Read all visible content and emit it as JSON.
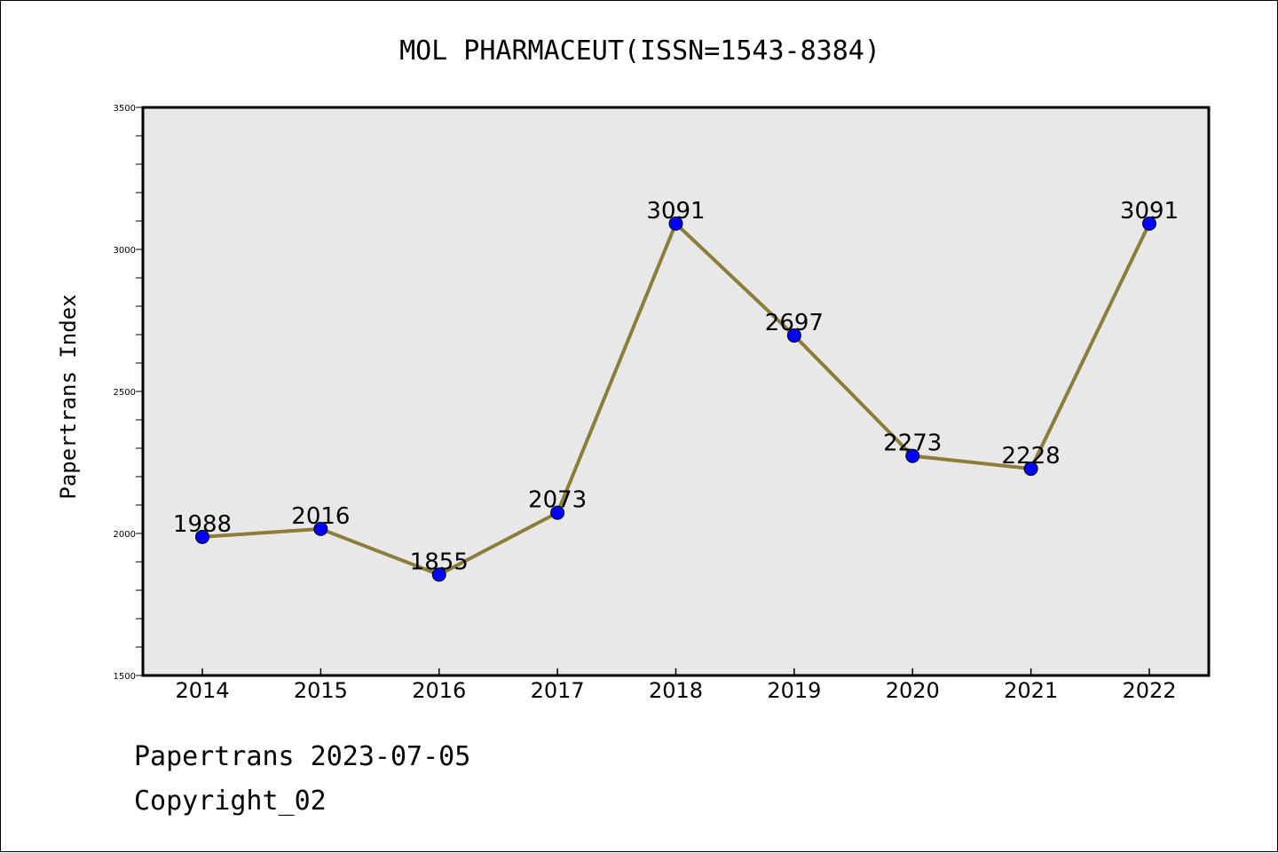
{
  "chart_data": {
    "type": "line",
    "title": "MOL PHARMACEUT(ISSN=1543-8384)",
    "xlabel": "",
    "ylabel": "Papertrans Index",
    "categories": [
      "2014",
      "2015",
      "2016",
      "2017",
      "2018",
      "2019",
      "2020",
      "2021",
      "2022"
    ],
    "series": [
      {
        "values": [
          1988,
          2016,
          1855,
          2073,
          3091,
          2697,
          2273,
          2228,
          3091
        ]
      }
    ],
    "data_labels": [
      "1988",
      "2016",
      "1855",
      "2073",
      "3091",
      "2697",
      "2273",
      "2228",
      "3091"
    ],
    "ylim": [
      1500,
      3500
    ],
    "yticks": [
      1500,
      2000,
      2500,
      3000,
      3500
    ],
    "grid": false,
    "colors": {
      "line": "#8b7d3a",
      "marker": "#0000ff",
      "plot_background": "#e8e8e8"
    }
  },
  "footer": {
    "line1": "Papertrans 2023-07-05",
    "line2": "Copyright_02"
  }
}
